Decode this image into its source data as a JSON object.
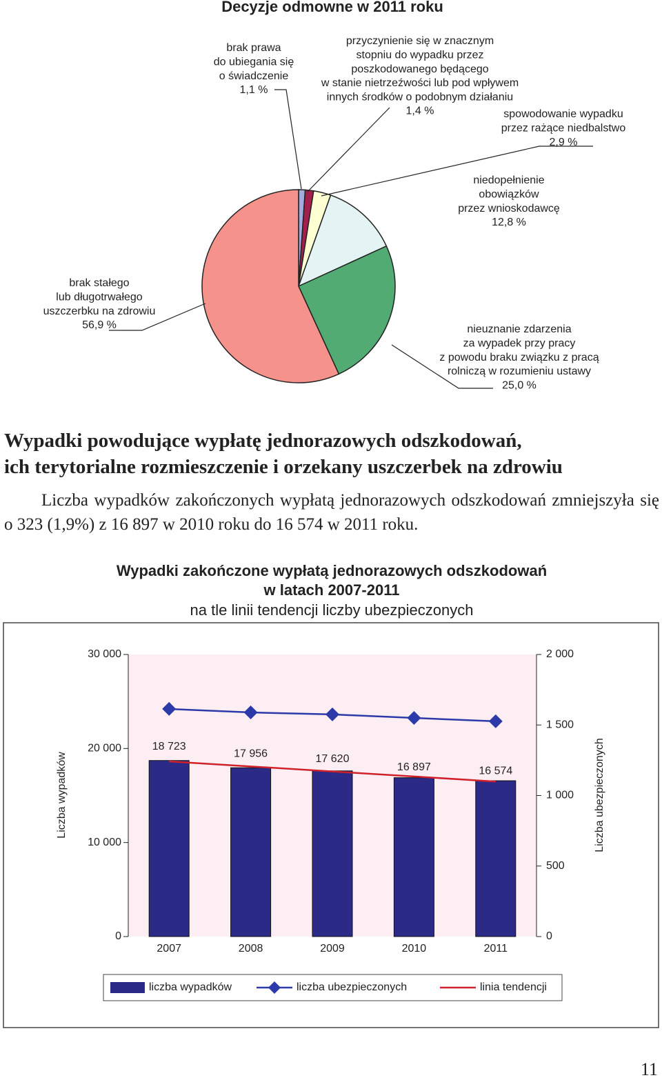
{
  "chart_data": [
    {
      "type": "pie",
      "title": "Decyzje odmowne w 2011 roku",
      "labels": [
        [
          "brak prawa",
          "do ubiegania się",
          "o świadczenie"
        ],
        [
          "przyczynienie się w znacznym",
          "stopniu do wypadku przez",
          "poszkodowanego będącego",
          "w stanie nietrzeźwości lub pod wpływem",
          "innych środków o podobnym działaniu"
        ],
        [
          "spowodowanie wypadku",
          "przez rażące niedbalstwo"
        ],
        [
          "niedopełnienie",
          "obowiązków",
          "przez wnioskodawcę"
        ],
        [
          "nieuznanie zdarzenia",
          "za wypadek przy pracy",
          "z powodu braku związku z pracą",
          "rolniczą w rozumieniu ustawy"
        ],
        [
          "brak stałego",
          "lub długotrwałego",
          "uszczerbku na zdrowiu"
        ]
      ],
      "values": [
        1.1,
        1.4,
        2.9,
        12.8,
        25.0,
        56.9
      ],
      "value_labels": [
        "1,1 %",
        "1,4 %",
        "2,9 %",
        "12,8 %",
        "25,0 %",
        "56,9 %"
      ],
      "colors": [
        "#a3acdc",
        "#a3204c",
        "#ffffd4",
        "#e4f3f3",
        "#52ab72",
        "#f4928b"
      ]
    },
    {
      "type": "bar",
      "title": [
        "Wypadki zakończone wypłatą jednorazowych odszkodowań",
        "w latach 2007-2011"
      ],
      "subtitle": "na tle linii tendencji liczby ubezpieczonych",
      "categories": [
        "2007",
        "2008",
        "2009",
        "2010",
        "2011"
      ],
      "ylabel": "Liczba wypadków",
      "y2label": "Liczba ubezpieczonych",
      "ylim": [
        0,
        30000
      ],
      "yticks": [
        0,
        {
          "value": 10000,
          "label": "10 000"
        },
        {
          "value": 20000,
          "label": "20 000"
        },
        {
          "value": 30000,
          "label": "30 000"
        }
      ],
      "y2lim": [
        0,
        2000
      ],
      "y2ticks": [
        0,
        500,
        {
          "value": 1000,
          "label": "1 000"
        },
        {
          "value": 1500,
          "label": "1 500"
        },
        {
          "value": 2000,
          "label": "2 000"
        }
      ],
      "series": [
        {
          "name": "liczba wypadków",
          "type": "bar",
          "color": "#2b2b87",
          "values": [
            18723,
            17956,
            17620,
            16897,
            16574
          ],
          "value_labels": [
            "18 723",
            "17 956",
            "17 620",
            "16 897",
            "16 574"
          ]
        },
        {
          "name": "liczba ubezpieczonych",
          "type": "line",
          "marker": "diamond",
          "axis": "y2",
          "color": "#2b3aa8",
          "values": [
            1614,
            1589,
            1575,
            1550,
            1526
          ]
        },
        {
          "name": "linia tendencji",
          "type": "line",
          "color": "#d0202a",
          "values": [
            18629,
            18093,
            17558,
            17022,
            16487
          ]
        }
      ],
      "legend": "bottom"
    }
  ],
  "document": {
    "heading": [
      "Wypadki powodujące wypłatę jednorazowych odszkodowań,",
      "ich terytorialne rozmieszczenie i orzekany uszczerbek na zdrowiu"
    ],
    "paragraph": "Liczba wypadków zakończonych wypłatą jednorazowych odszkodowań zmniejszyła się o 323 (1,9%) z 16 897 w 2010 roku do 16 574 w 2011 roku.",
    "page_number": "11"
  }
}
